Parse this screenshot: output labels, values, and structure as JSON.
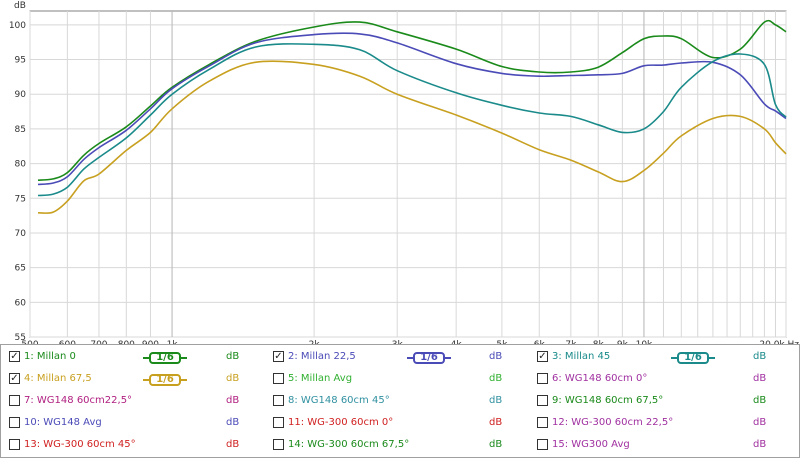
{
  "chart_data": {
    "type": "line",
    "ylabel": "dB",
    "xunit": "Hz",
    "ylim": [
      55,
      102
    ],
    "xlim": [
      500,
      20000
    ],
    "xscale": "log",
    "grid": true,
    "yticks": [
      55,
      60,
      65,
      70,
      75,
      80,
      85,
      90,
      95,
      100
    ],
    "xticks": [
      {
        "v": 500,
        "l": "500"
      },
      {
        "v": 600,
        "l": "600"
      },
      {
        "v": 700,
        "l": "700"
      },
      {
        "v": 800,
        "l": "800"
      },
      {
        "v": 900,
        "l": "900"
      },
      {
        "v": 1000,
        "l": "1k"
      },
      {
        "v": 2000,
        "l": "2k"
      },
      {
        "v": 3000,
        "l": "3k"
      },
      {
        "v": 4000,
        "l": "4k"
      },
      {
        "v": 5000,
        "l": "5k"
      },
      {
        "v": 6000,
        "l": "6k"
      },
      {
        "v": 7000,
        "l": "7k"
      },
      {
        "v": 8000,
        "l": "8k"
      },
      {
        "v": 9000,
        "l": "9k"
      },
      {
        "v": 10000,
        "l": "10k"
      },
      {
        "v": 20000,
        "l": "20,0k Hz"
      }
    ],
    "series": [
      {
        "name": "Millan 0",
        "color": "#1a8a1a",
        "x": [
          520,
          560,
          600,
          650,
          700,
          800,
          900,
          1000,
          1200,
          1500,
          2000,
          2500,
          3000,
          4000,
          5000,
          6000,
          7000,
          8000,
          9000,
          10000,
          11000,
          12000,
          14000,
          16000,
          18000,
          19000,
          20000
        ],
        "y": [
          77.6,
          77.8,
          78.7,
          81.2,
          82.9,
          85.3,
          88.3,
          91.0,
          94.3,
          97.6,
          99.7,
          100.4,
          99.0,
          96.5,
          94.0,
          93.2,
          93.2,
          93.9,
          96.0,
          98.0,
          98.4,
          98.0,
          95.3,
          96.5,
          100.4,
          100.0,
          99.0
        ]
      },
      {
        "name": "Millan 22,5",
        "color": "#4b4bb8",
        "x": [
          520,
          560,
          600,
          650,
          700,
          800,
          900,
          1000,
          1200,
          1500,
          2000,
          2500,
          3000,
          4000,
          5000,
          6000,
          7000,
          8000,
          9000,
          10000,
          11000,
          12000,
          14000,
          16000,
          18000,
          19000,
          20000
        ],
        "y": [
          77.0,
          77.2,
          78.1,
          80.6,
          82.3,
          84.8,
          87.9,
          90.8,
          94.1,
          97.4,
          98.6,
          98.7,
          97.4,
          94.4,
          93.0,
          92.6,
          92.7,
          92.8,
          93.0,
          94.1,
          94.2,
          94.5,
          94.6,
          92.8,
          88.6,
          87.6,
          86.5
        ]
      },
      {
        "name": "Millan 45",
        "color": "#1a8a8a",
        "x": [
          520,
          560,
          600,
          650,
          700,
          800,
          900,
          1000,
          1200,
          1500,
          2000,
          2500,
          3000,
          4000,
          5000,
          6000,
          7000,
          8000,
          9000,
          10000,
          11000,
          12000,
          14000,
          16000,
          18000,
          19000,
          20000
        ],
        "y": [
          75.4,
          75.6,
          76.6,
          79.2,
          80.9,
          83.7,
          87.0,
          90.0,
          93.6,
          96.8,
          97.2,
          96.4,
          93.4,
          90.2,
          88.4,
          87.3,
          86.8,
          85.6,
          84.5,
          85.0,
          87.5,
          91.0,
          94.7,
          95.8,
          94.3,
          88.5,
          86.7
        ]
      },
      {
        "name": "Millan 67,5",
        "color": "#c8a020",
        "x": [
          520,
          560,
          600,
          650,
          700,
          800,
          900,
          1000,
          1200,
          1500,
          2000,
          2500,
          3000,
          4000,
          5000,
          6000,
          7000,
          8000,
          9000,
          10000,
          11000,
          12000,
          14000,
          16000,
          18000,
          19000,
          20000
        ],
        "y": [
          72.9,
          73.0,
          74.6,
          77.5,
          78.5,
          81.9,
          84.5,
          87.9,
          91.9,
          94.6,
          94.3,
          92.6,
          90.0,
          87.0,
          84.4,
          82.0,
          80.5,
          78.8,
          77.4,
          79.0,
          81.5,
          84.0,
          86.5,
          86.8,
          85.0,
          83.0,
          81.4
        ]
      }
    ]
  },
  "legend": {
    "row1": [
      {
        "num": "1:",
        "name": "Millan 0",
        "unit": "dB",
        "checked": true,
        "color": "#1a8a1a",
        "badge": "1/6"
      },
      {
        "num": "2:",
        "name": "Millan 22,5",
        "unit": "dB",
        "checked": true,
        "color": "#4b4bb8",
        "badge": "1/6"
      },
      {
        "num": "3:",
        "name": "Millan 45",
        "unit": "dB",
        "checked": true,
        "color": "#1a8a8a",
        "badge": "1/6"
      }
    ],
    "row2": [
      {
        "num": "4:",
        "name": "Millan 67,5",
        "unit": "dB",
        "checked": true,
        "color": "#c8a020",
        "badge": "1/6"
      },
      {
        "num": "5:",
        "name": "Millan Avg",
        "unit": "dB",
        "checked": false,
        "color": "#30b030"
      },
      {
        "num": "6:",
        "name": "WG148 60cm 0°",
        "unit": "dB",
        "checked": false,
        "color": "#a030a0"
      }
    ],
    "row3": [
      {
        "num": "7:",
        "name": "WG148 60cm22,5°",
        "unit": "dB",
        "checked": false,
        "color": "#b02080"
      },
      {
        "num": "8:",
        "name": "WG148 60cm 45°",
        "unit": "dB",
        "checked": false,
        "color": "#3090a0"
      },
      {
        "num": "9:",
        "name": "WG148 60cm 67,5°",
        "unit": "dB",
        "checked": false,
        "color": "#1a8a1a"
      }
    ],
    "row4": [
      {
        "num": "10:",
        "name": "WG148 Avg",
        "unit": "dB",
        "checked": false,
        "color": "#4b4bb8"
      },
      {
        "num": "11:",
        "name": "WG-300 60cm 0°",
        "unit": "dB",
        "checked": false,
        "color": "#d02020"
      },
      {
        "num": "12:",
        "name": "WG-300 60cm 22,5°",
        "unit": "dB",
        "checked": false,
        "color": "#a030a0"
      }
    ],
    "row5": [
      {
        "num": "13:",
        "name": "WG-300 60cm 45°",
        "unit": "dB",
        "checked": false,
        "color": "#d02020"
      },
      {
        "num": "14:",
        "name": "WG-300 60cm 67,5°",
        "unit": "dB",
        "checked": false,
        "color": "#1a8a1a"
      },
      {
        "num": "15:",
        "name": "WG300 Avg",
        "unit": "dB",
        "checked": false,
        "color": "#a030a0"
      }
    ]
  }
}
